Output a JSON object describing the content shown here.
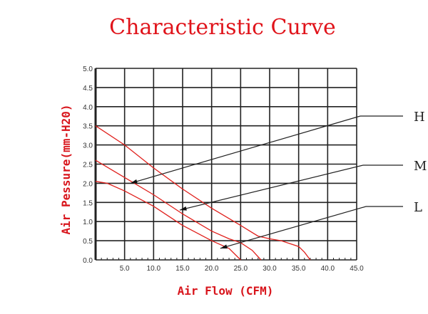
{
  "chart_data": {
    "type": "line",
    "title": "Characteristic Curve",
    "xlabel": "Air Flow (CFM)",
    "ylabel": "Air Pessure(mm-H20)",
    "xlim": [
      0,
      45
    ],
    "ylim": [
      0,
      5
    ],
    "xticks": [
      "5.0",
      "10.0",
      "15.0",
      "20.0",
      "25.0",
      "30.0",
      "35.0",
      "40.0",
      "45.0"
    ],
    "yticks": [
      "0.0",
      "0.5",
      "1.0",
      "1.5",
      "2.0",
      "2.5",
      "3.0",
      "3.5",
      "4.0",
      "4.5",
      "5.0"
    ],
    "grid": true,
    "line_color": "#e0201c",
    "series": [
      {
        "name": "H",
        "x": [
          0,
          5,
          10,
          15,
          20,
          25,
          28,
          30,
          32,
          35,
          36,
          37
        ],
        "y": [
          3.5,
          3.0,
          2.4,
          1.85,
          1.35,
          0.9,
          0.62,
          0.55,
          0.5,
          0.35,
          0.2,
          0
        ]
      },
      {
        "name": "M",
        "x": [
          0,
          5,
          10,
          15,
          20,
          23,
          25,
          27,
          28.5
        ],
        "y": [
          2.6,
          2.15,
          1.7,
          1.2,
          0.75,
          0.55,
          0.45,
          0.25,
          0
        ]
      },
      {
        "name": "L",
        "x": [
          0,
          2,
          5,
          10,
          15,
          20,
          23,
          25
        ],
        "y": [
          2.05,
          2.0,
          1.8,
          1.4,
          0.9,
          0.5,
          0.3,
          0
        ]
      }
    ],
    "annotations": [
      {
        "text": "H",
        "points_to": [
          6,
          2.0
        ]
      },
      {
        "text": "M",
        "points_to": [
          14.5,
          1.3
        ]
      },
      {
        "text": "L",
        "points_to": [
          21.5,
          0.3
        ]
      }
    ]
  }
}
